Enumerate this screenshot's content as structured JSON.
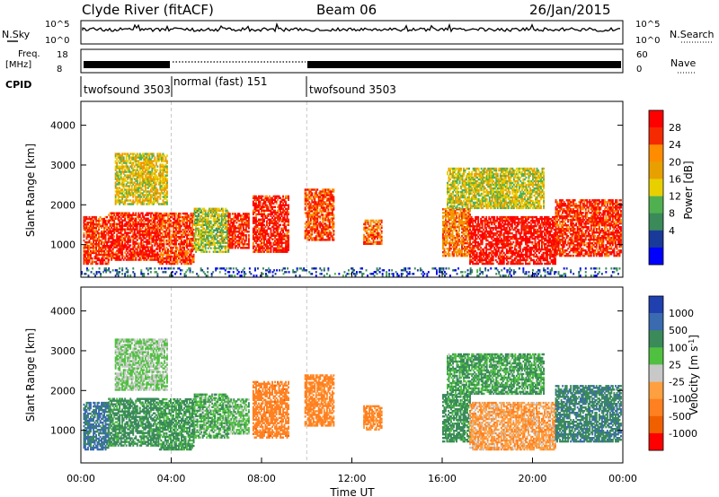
{
  "header": {
    "station": "Clyde River (fitACF)",
    "beam": "Beam 06",
    "date": "26/Jan/2015"
  },
  "strips": {
    "nsky_label": "N.Sky",
    "nsky_ticks": [
      "10^5",
      "10^0"
    ],
    "nsearch_label": "N.Search",
    "nsearch_ticks": [
      "10^5",
      "10^0"
    ],
    "freq_label": "Freq.",
    "freq_unit": "[MHz]",
    "freq_ticks": [
      "18",
      "8"
    ],
    "nave_label": "Nave",
    "nave_ticks": [
      "60",
      "0"
    ],
    "cpid_label": "CPID",
    "cpid_segments": [
      {
        "label": "twofsound 3503",
        "start_h": 0,
        "end_h": 4
      },
      {
        "label": "normal (fast) 151",
        "start_h": 4,
        "end_h": 10
      },
      {
        "label": "twofsound 3503",
        "start_h": 10,
        "end_h": 24
      }
    ]
  },
  "chart_data": [
    {
      "type": "heatmap",
      "name": "power",
      "ylabel": "Slant Range [km]",
      "xlabel": "Time UT",
      "xlim": [
        0,
        24
      ],
      "ylim": [
        180,
        4600
      ],
      "x_tick_labels": [
        "00:00",
        "04:00",
        "08:00",
        "12:00",
        "16:00",
        "20:00",
        "00:00"
      ],
      "y_ticks": [
        1000,
        2000,
        3000,
        4000
      ],
      "colorbar": {
        "label": "Power [dB]",
        "ticks": [
          "28",
          "24",
          "20",
          "16",
          "12",
          "8",
          "4"
        ],
        "colors": [
          "#ff0000",
          "#f52a00",
          "#ff8c00",
          "#e8a000",
          "#e8d000",
          "#50b050",
          "#3a8a5a",
          "#1a3a9a",
          "#0000ff"
        ]
      },
      "clusters": [
        {
          "t0": 0.1,
          "t1": 1.2,
          "r0": 500,
          "r1": 1700,
          "value": 26
        },
        {
          "t0": 1.2,
          "t1": 3.4,
          "r0": 600,
          "r1": 1800,
          "value": 27
        },
        {
          "t0": 3.4,
          "t1": 5.0,
          "r0": 500,
          "r1": 1800,
          "value": 25
        },
        {
          "t0": 5.0,
          "t1": 6.5,
          "r0": 800,
          "r1": 1900,
          "value": 14
        },
        {
          "t0": 6.5,
          "t1": 7.4,
          "r0": 900,
          "r1": 1800,
          "value": 26
        },
        {
          "t0": 7.6,
          "t1": 9.2,
          "r0": 800,
          "r1": 2200,
          "value": 27
        },
        {
          "t0": 9.9,
          "t1": 11.2,
          "r0": 1100,
          "r1": 2400,
          "value": 24
        },
        {
          "t0": 12.5,
          "t1": 13.3,
          "r0": 1000,
          "r1": 1600,
          "value": 23
        },
        {
          "t0": 16.0,
          "t1": 17.2,
          "r0": 700,
          "r1": 1900,
          "value": 22
        },
        {
          "t0": 17.2,
          "t1": 21.0,
          "r0": 500,
          "r1": 1700,
          "value": 28
        },
        {
          "t0": 21.0,
          "t1": 23.9,
          "r0": 700,
          "r1": 2100,
          "value": 26
        },
        {
          "t0": 1.5,
          "t1": 3.8,
          "r0": 2000,
          "r1": 3300,
          "value": 16
        },
        {
          "t0": 16.2,
          "t1": 20.5,
          "r0": 1900,
          "r1": 2900,
          "value": 15
        },
        {
          "t0": 0.0,
          "t1": 24.0,
          "r0": 200,
          "r1": 400,
          "value": 6
        }
      ]
    },
    {
      "type": "heatmap",
      "name": "velocity",
      "ylabel": "Slant Range [km]",
      "xlabel": "Time UT",
      "xlim": [
        0,
        24
      ],
      "ylim": [
        180,
        4600
      ],
      "x_tick_labels": [
        "00:00",
        "04:00",
        "08:00",
        "12:00",
        "16:00",
        "20:00",
        "00:00"
      ],
      "y_ticks": [
        1000,
        2000,
        3000,
        4000
      ],
      "colorbar": {
        "label": "Velocity [m s",
        "label_sup": "-1",
        "label_end": "]",
        "ticks": [
          "1000",
          "500",
          "100",
          "25",
          "-25",
          "-100",
          "-500",
          "-1000"
        ],
        "colors": [
          "#2040b0",
          "#3a6ab0",
          "#3a8a5a",
          "#50c040",
          "#c8c8c8",
          "#ffa040",
          "#ff8020",
          "#f06000",
          "#ff0000"
        ]
      },
      "clusters": [
        {
          "t0": 0.1,
          "t1": 1.2,
          "r0": 500,
          "r1": 1700,
          "value": 600
        },
        {
          "t0": 1.2,
          "t1": 3.4,
          "r0": 600,
          "r1": 1800,
          "value": 200
        },
        {
          "t0": 3.4,
          "t1": 5.0,
          "r0": 500,
          "r1": 1800,
          "value": 150
        },
        {
          "t0": 5.0,
          "t1": 6.5,
          "r0": 800,
          "r1": 1900,
          "value": 80
        },
        {
          "t0": 6.5,
          "t1": 7.4,
          "r0": 900,
          "r1": 1800,
          "value": 60
        },
        {
          "t0": 7.6,
          "t1": 9.2,
          "r0": 800,
          "r1": 2200,
          "value": -300
        },
        {
          "t0": 9.9,
          "t1": 11.2,
          "r0": 1100,
          "r1": 2400,
          "value": -200
        },
        {
          "t0": 12.5,
          "t1": 13.3,
          "r0": 1000,
          "r1": 1600,
          "value": -150
        },
        {
          "t0": 16.0,
          "t1": 17.2,
          "r0": 700,
          "r1": 1900,
          "value": 200
        },
        {
          "t0": 17.2,
          "t1": 21.0,
          "r0": 500,
          "r1": 1700,
          "value": -80
        },
        {
          "t0": 21.0,
          "t1": 23.9,
          "r0": 700,
          "r1": 2100,
          "value": 400
        },
        {
          "t0": 1.5,
          "t1": 3.8,
          "r0": 2000,
          "r1": 3300,
          "value": 30
        },
        {
          "t0": 16.2,
          "t1": 20.5,
          "r0": 1900,
          "r1": 2900,
          "value": 120
        }
      ]
    }
  ]
}
